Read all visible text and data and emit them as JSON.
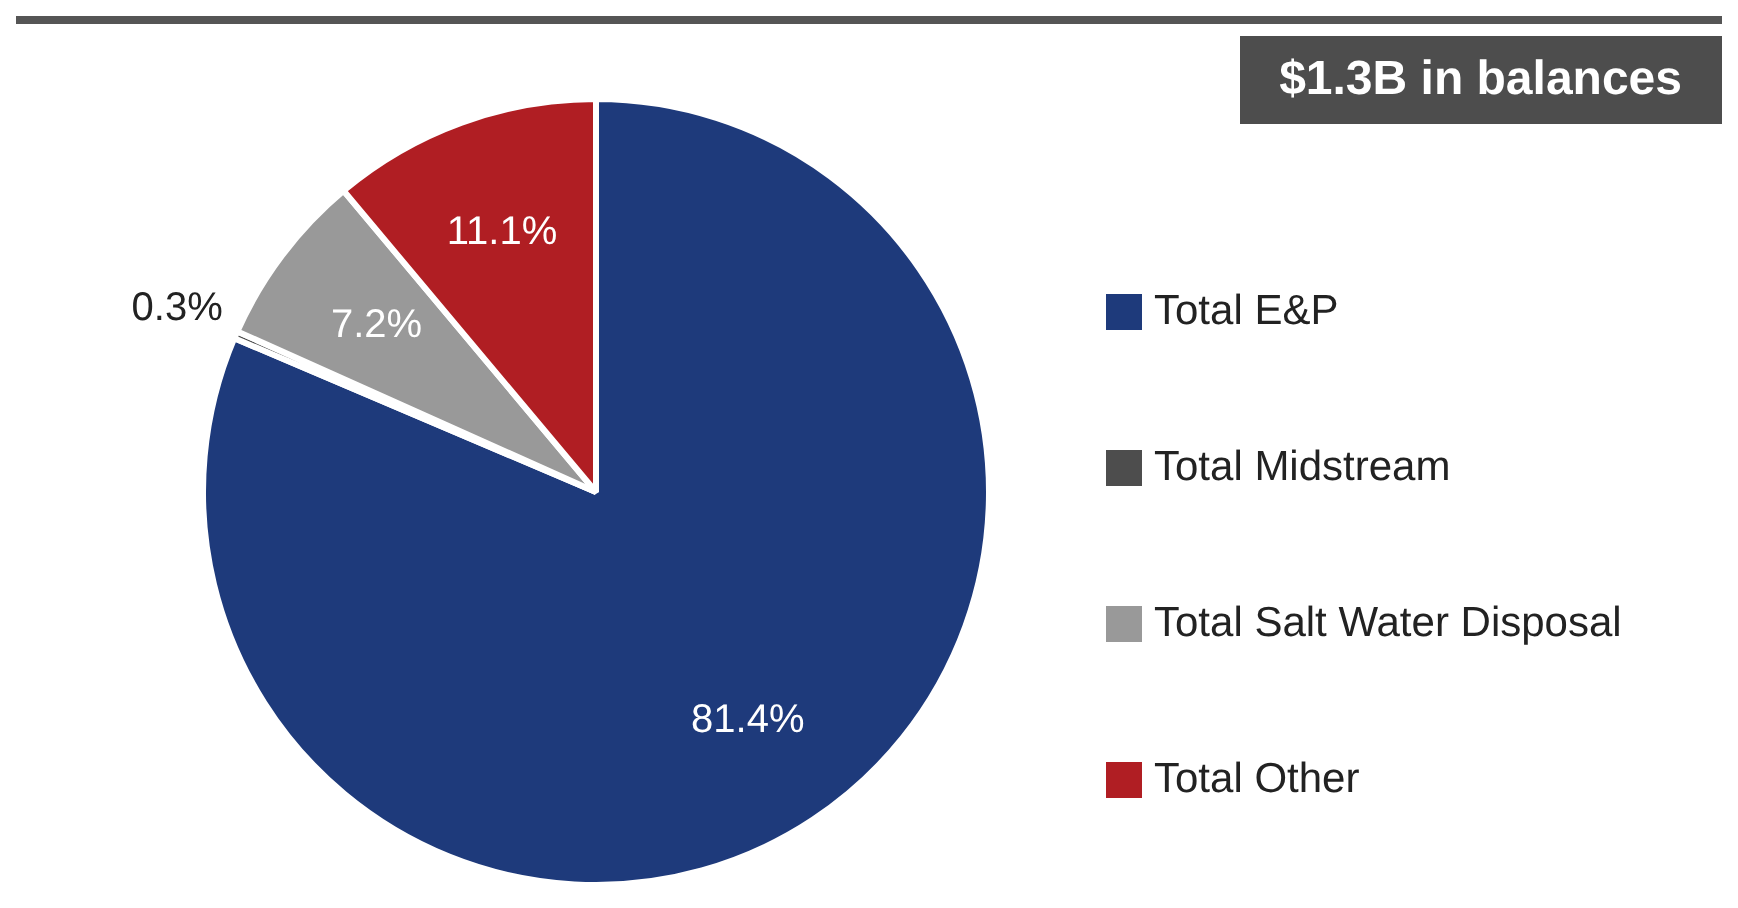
{
  "chart_data": {
    "type": "pie",
    "title": "$1.3B in balances",
    "categories": [
      "Total E&P",
      "Total Midstream",
      "Total Salt Water Disposal",
      "Total Other"
    ],
    "values": [
      81.4,
      0.3,
      7.2,
      11.1
    ],
    "colors": [
      "#1e3a7b",
      "#4d4d4d",
      "#999999",
      "#b01e23"
    ],
    "value_labels": [
      "81.4%",
      "0.3%",
      "7.2%",
      "11.1%"
    ],
    "legend": "right"
  }
}
